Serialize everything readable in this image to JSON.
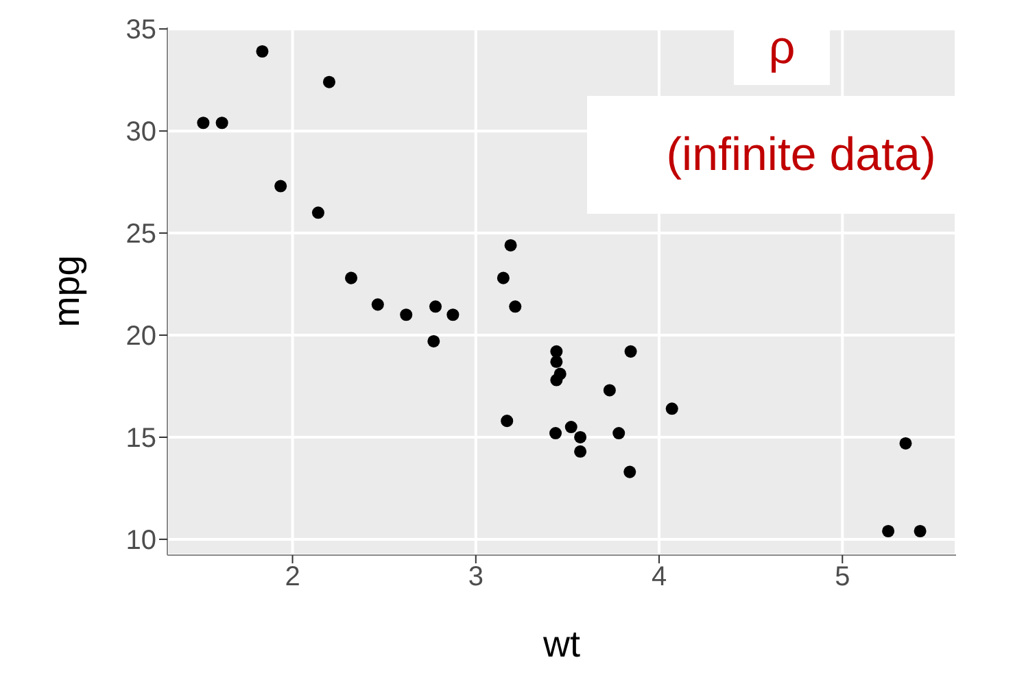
{
  "chart_data": {
    "type": "scatter",
    "xlabel": "wt",
    "ylabel": "mpg",
    "annotations": [
      "ρ",
      "(infinite data)"
    ],
    "x": [
      2.62,
      2.875,
      2.32,
      3.215,
      3.44,
      3.46,
      3.57,
      3.19,
      3.15,
      3.44,
      3.44,
      4.07,
      3.73,
      3.78,
      5.25,
      5.424,
      5.345,
      2.2,
      1.615,
      1.835,
      2.465,
      3.52,
      3.435,
      3.84,
      3.845,
      1.935,
      2.14,
      1.513,
      3.17,
      2.77,
      3.57,
      2.78
    ],
    "series": [
      {
        "color": "#000000",
        "values": [
          21.0,
          21.0,
          22.8,
          21.4,
          18.7,
          18.1,
          14.3,
          24.4,
          22.8,
          19.2,
          17.8,
          16.4,
          17.3,
          15.2,
          10.4,
          10.4,
          14.7,
          32.4,
          30.4,
          33.9,
          21.5,
          15.5,
          15.2,
          13.3,
          19.2,
          27.3,
          26.0,
          30.4,
          15.8,
          19.7,
          15.0,
          21.4
        ]
      }
    ],
    "xlim": [
      1.317,
      5.62
    ],
    "ylim": [
      9.225,
      35.075
    ],
    "xticks": [
      2,
      3,
      4,
      5
    ],
    "yticks": [
      10,
      15,
      20,
      25,
      30,
      35
    ],
    "grid": true,
    "marker": "circle",
    "legend": false
  }
}
